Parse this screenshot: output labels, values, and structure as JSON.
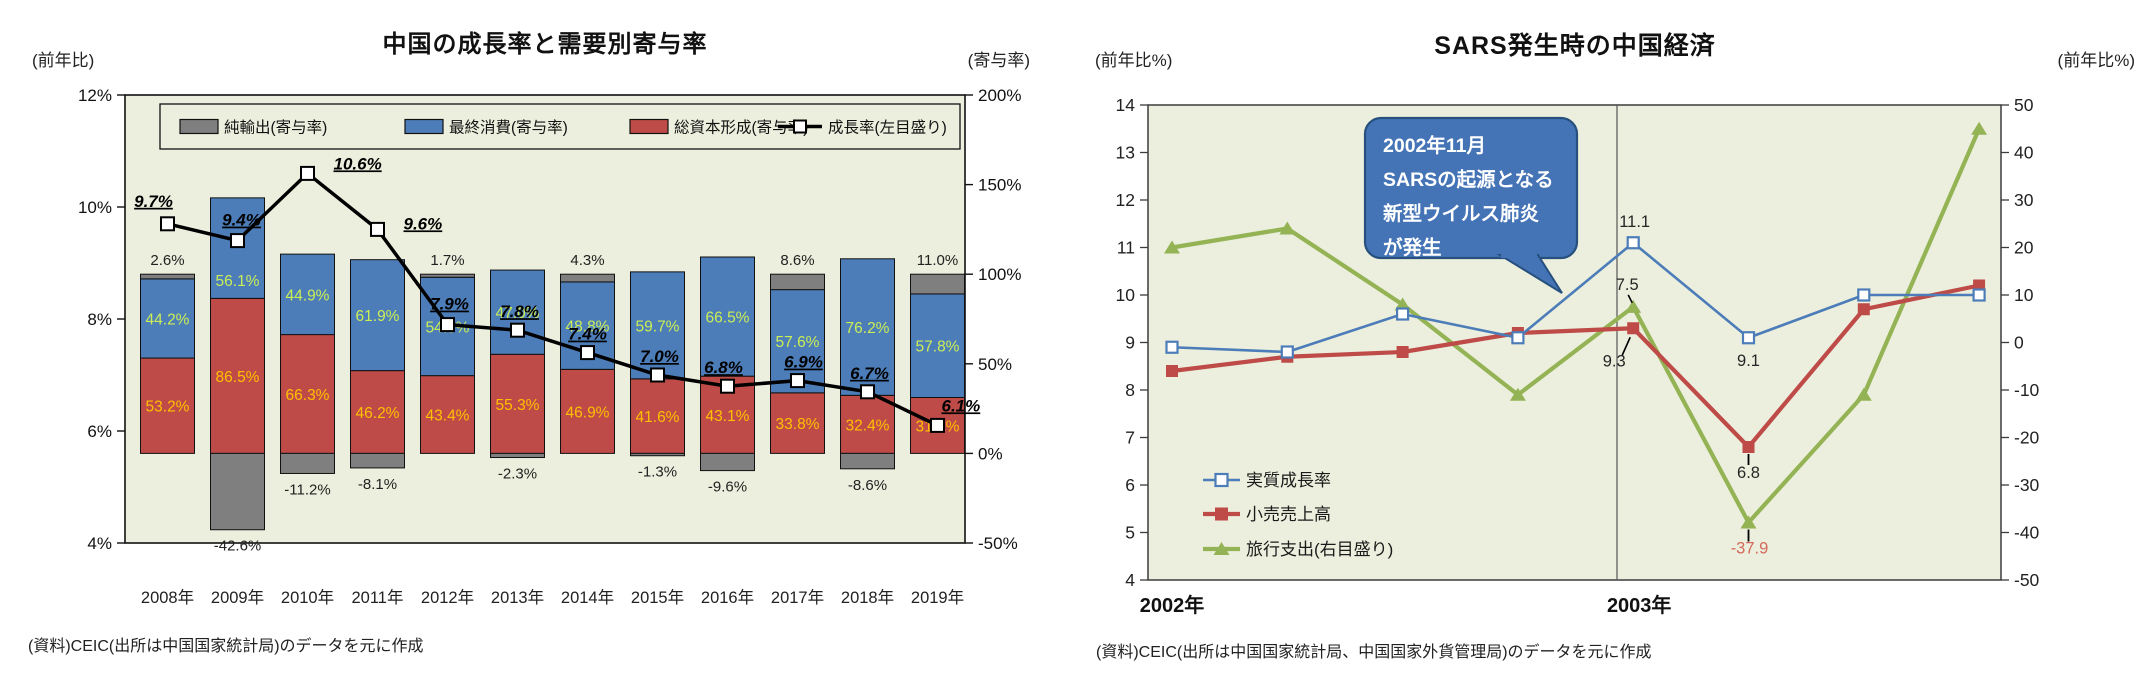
{
  "left_chart": {
    "title": "中国の成長率と需要別寄与率",
    "left_axis_caption": "(前年比)",
    "right_axis_caption": "(寄与率)",
    "footnote": "(資料)CEIC(出所は中国国家統計局)のデータを元に作成",
    "colors": {
      "plot_bg": "#ECEFDD",
      "net_exports_gray": "#7F7F7F",
      "consumption_blue": "#4C7DB8",
      "capital_red": "#BE4B48",
      "growth_line": "#000000",
      "label_in_blue": "#CCEE55",
      "label_in_red": "#FFC000"
    },
    "legend": [
      {
        "label": "純輸出(寄与率)",
        "swatch": "gray-bar"
      },
      {
        "label": "最終消費(寄与率)",
        "swatch": "blue-bar"
      },
      {
        "label": "総資本形成(寄与率)",
        "swatch": "red-bar"
      },
      {
        "label": "成長率(左目盛り)",
        "swatch": "line-marker"
      }
    ],
    "chart_data": {
      "type": "bar+line",
      "categories": [
        "2008年",
        "2009年",
        "2010年",
        "2011年",
        "2012年",
        "2013年",
        "2014年",
        "2015年",
        "2016年",
        "2017年",
        "2018年",
        "2019年"
      ],
      "series": [
        {
          "name": "純輸出(寄与率)",
          "type": "bar",
          "axis": "right",
          "values": [
            2.6,
            -42.6,
            -11.2,
            -8.1,
            1.7,
            -2.3,
            4.3,
            -1.3,
            -9.6,
            8.6,
            -8.6,
            11.0
          ]
        },
        {
          "name": "最終消費(寄与率)",
          "type": "bar",
          "axis": "right",
          "values": [
            44.2,
            56.1,
            44.9,
            61.9,
            54.9,
            47.0,
            48.8,
            59.7,
            66.5,
            57.6,
            76.2,
            57.8
          ]
        },
        {
          "name": "総資本形成(寄与率)",
          "type": "bar",
          "axis": "right",
          "values": [
            53.2,
            86.5,
            66.3,
            46.2,
            43.4,
            55.3,
            46.9,
            41.6,
            43.1,
            33.8,
            32.4,
            31.2
          ]
        },
        {
          "name": "成長率(左目盛り)",
          "type": "line",
          "axis": "left",
          "values": [
            9.7,
            9.4,
            10.6,
            9.6,
            7.9,
            7.8,
            7.4,
            7.0,
            6.8,
            6.9,
            6.7,
            6.1
          ]
        }
      ],
      "left_axis": {
        "min": 4,
        "max": 12,
        "tick_values": [
          12,
          10,
          8,
          6,
          4
        ],
        "tick_suffix": "%"
      },
      "right_axis": {
        "min": -50,
        "max": 200,
        "tick_values": [
          200,
          150,
          100,
          50,
          0,
          -50
        ],
        "tick_suffix": "%"
      },
      "grid": false,
      "legend_position": "top-inside"
    }
  },
  "right_chart": {
    "title": "SARS発生時の中国経済",
    "left_axis_caption": "(前年比%)",
    "right_axis_caption": "(前年比%)",
    "footnote": "(資料)CEIC(出所は中国国家統計局、中国国家外貨管理局)のデータを元に作成",
    "colors": {
      "plot_bg": "#ECEFDD",
      "gdp_blue": "#4C7DB8",
      "retail_red": "#BE4B48",
      "travel_green": "#94B354",
      "callout_fill": "#4474B6",
      "callout_border": "#27507F",
      "annotation_red": "#D4695C"
    },
    "callout": {
      "lines": [
        "2002年11月",
        "SARSの起源となる",
        "新型ウイルス肺炎",
        "が発生"
      ]
    },
    "chart_data": {
      "type": "line",
      "x": [
        "2002Q1",
        "2002Q2",
        "2002Q3",
        "2002Q4",
        "2003Q1",
        "2003Q2",
        "2003Q3",
        "2003Q4"
      ],
      "x_axis_labels": [
        "2002年",
        "2003年"
      ],
      "series": [
        {
          "name": "実質成長率",
          "axis": "left",
          "marker": "open-square",
          "values": [
            8.9,
            8.8,
            9.6,
            9.1,
            11.1,
            9.1,
            10.0,
            10.0
          ]
        },
        {
          "name": "小売売上高",
          "axis": "left",
          "marker": "filled-square",
          "values": [
            8.4,
            8.7,
            8.8,
            9.2,
            9.3,
            6.8,
            9.7,
            10.2
          ]
        },
        {
          "name": "旅行支出(右目盛り)",
          "axis": "right",
          "marker": "triangle",
          "values": [
            20,
            24,
            8,
            -11,
            7.5,
            -37.9,
            -11,
            45
          ]
        }
      ],
      "annotations": [
        {
          "series": 0,
          "point": 4,
          "label": "11.1"
        },
        {
          "series": 0,
          "point": 5,
          "label": "9.1"
        },
        {
          "series": 1,
          "point": 4,
          "label": "9.3"
        },
        {
          "series": 1,
          "point": 5,
          "label": "6.8"
        },
        {
          "series": 2,
          "point": 4,
          "label": "7.5"
        },
        {
          "series": 2,
          "point": 5,
          "label": "-37.9",
          "color": "#D4695C"
        }
      ],
      "left_axis": {
        "min": 4,
        "max": 14,
        "step": 1,
        "tick_values": [
          14,
          13,
          12,
          11,
          10,
          9,
          8,
          7,
          6,
          5,
          4
        ]
      },
      "right_axis": {
        "min": -50,
        "max": 50,
        "step": 10,
        "tick_values": [
          50,
          40,
          30,
          20,
          10,
          0,
          -10,
          -20,
          -30,
          -40,
          -50
        ]
      },
      "event_line_x": "2002/2003境界付近(2003年第1四半期手前)",
      "grid": false,
      "legend_position": "bottom-left-inside"
    }
  }
}
